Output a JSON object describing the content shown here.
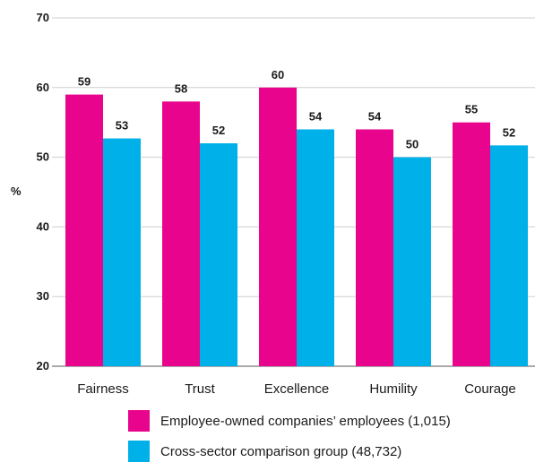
{
  "chart_data": {
    "type": "bar",
    "ylabel": "%",
    "xlabel": "",
    "ylim": [
      20,
      70
    ],
    "yticks": [
      20,
      30,
      40,
      50,
      60,
      70
    ],
    "grid": true,
    "legend_position": "bottom",
    "categories": [
      "Fairness",
      "Trust",
      "Excellence",
      "Humility",
      "Courage"
    ],
    "series": [
      {
        "name": "Employee-owned companies’ employees (1,015)",
        "color": "#e8048c",
        "values": [
          59,
          58,
          60,
          54,
          55
        ]
      },
      {
        "name": "Cross-sector comparison group (48,732)",
        "color": "#00b0e8",
        "values": [
          52.7,
          52,
          54,
          50,
          51.7
        ],
        "labels": [
          "53",
          "52",
          "54",
          "50",
          "52"
        ]
      }
    ]
  }
}
